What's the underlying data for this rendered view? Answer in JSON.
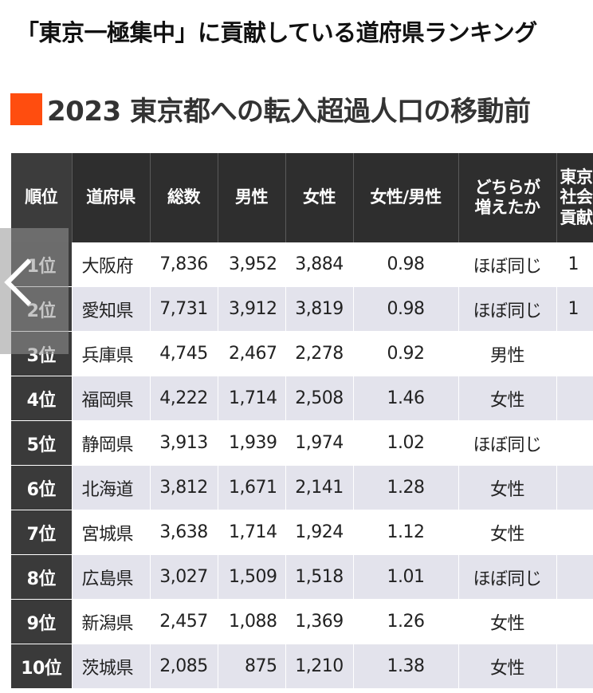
{
  "headline": "「東京一極集中」に貢献している道府県ランキング",
  "subtitle": "2023 東京都への転入超過人口の移動前",
  "colors": {
    "accent_square": "#ff4d0f",
    "header_bg": "#2e2e2e",
    "row_alt_bg": "#e3e3ec"
  },
  "table": {
    "headers": {
      "rank": "順位",
      "prefecture": "道府県",
      "total": "総数",
      "male": "男性",
      "female": "女性",
      "ratio_1": "女性/男性",
      "which_1": "どちらが",
      "which_2": "増えたか",
      "contrib_1": "東京",
      "contrib_2": "社会",
      "contrib_3": "貢献"
    },
    "rows": [
      {
        "rank": "1位",
        "prefecture": "大阪府",
        "total": "7,836",
        "male": "3,952",
        "female": "3,884",
        "ratio": "0.98",
        "which": "ほぼ同じ",
        "contrib": "1"
      },
      {
        "rank": "2位",
        "prefecture": "愛知県",
        "total": "7,731",
        "male": "3,912",
        "female": "3,819",
        "ratio": "0.98",
        "which": "ほぼ同じ",
        "contrib": "1"
      },
      {
        "rank": "3位",
        "prefecture": "兵庫県",
        "total": "4,745",
        "male": "2,467",
        "female": "2,278",
        "ratio": "0.92",
        "which": "男性",
        "contrib": ""
      },
      {
        "rank": "4位",
        "prefecture": "福岡県",
        "total": "4,222",
        "male": "1,714",
        "female": "2,508",
        "ratio": "1.46",
        "which": "女性",
        "contrib": ""
      },
      {
        "rank": "5位",
        "prefecture": "静岡県",
        "total": "3,913",
        "male": "1,939",
        "female": "1,974",
        "ratio": "1.02",
        "which": "ほぼ同じ",
        "contrib": ""
      },
      {
        "rank": "6位",
        "prefecture": "北海道",
        "total": "3,812",
        "male": "1,671",
        "female": "2,141",
        "ratio": "1.28",
        "which": "女性",
        "contrib": ""
      },
      {
        "rank": "7位",
        "prefecture": "宮城県",
        "total": "3,638",
        "male": "1,714",
        "female": "1,924",
        "ratio": "1.12",
        "which": "女性",
        "contrib": ""
      },
      {
        "rank": "8位",
        "prefecture": "広島県",
        "total": "3,027",
        "male": "1,509",
        "female": "1,518",
        "ratio": "1.01",
        "which": "ほぼ同じ",
        "contrib": ""
      },
      {
        "rank": "9位",
        "prefecture": "新潟県",
        "total": "2,457",
        "male": "1,088",
        "female": "1,369",
        "ratio": "1.26",
        "which": "女性",
        "contrib": ""
      },
      {
        "rank": "10位",
        "prefecture": "茨城県",
        "total": "2,085",
        "male": "875",
        "female": "1,210",
        "ratio": "1.38",
        "which": "女性",
        "contrib": ""
      }
    ]
  },
  "overlay": {
    "back_icon": "chevron-left-icon"
  }
}
